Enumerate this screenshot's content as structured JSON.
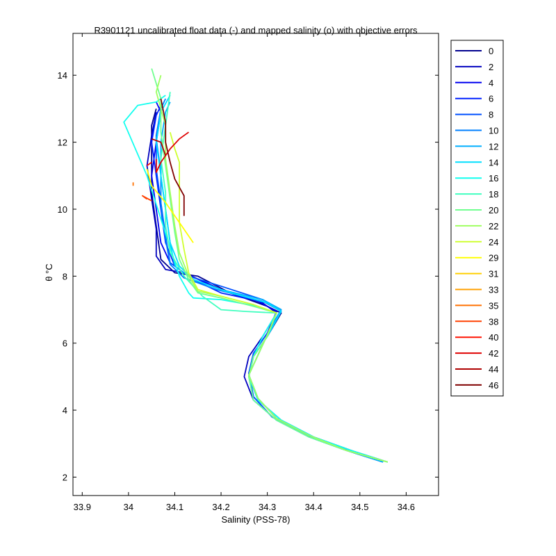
{
  "chart_data": {
    "type": "line",
    "title": "R3901121 uncalibrated float data (-) and mapped salinity (o) with objective errors",
    "xlabel": "Salinity (PSS-78)",
    "ylabel": "θ °C",
    "xlim": [
      33.88,
      34.67
    ],
    "ylim": [
      1.45,
      15.25
    ],
    "x_ticks": [
      33.9,
      34,
      34.1,
      34.2,
      34.3,
      34.4,
      34.5,
      34.6
    ],
    "x_tick_labels": [
      "33.9",
      "34",
      "34.1",
      "34.2",
      "34.3",
      "34.4",
      "34.5",
      "34.6"
    ],
    "y_ticks": [
      2,
      4,
      6,
      8,
      10,
      12,
      14
    ],
    "y_tick_labels": [
      "2",
      "4",
      "6",
      "8",
      "10",
      "12",
      "14"
    ],
    "grid": false,
    "legend_position": "outside-right-top",
    "series": [
      {
        "name": "0",
        "color": "#00008f",
        "values": [
          [
            34.56,
            2.45
          ],
          [
            34.48,
            2.8
          ],
          [
            34.4,
            3.2
          ],
          [
            34.33,
            3.7
          ],
          [
            34.28,
            4.3
          ],
          [
            34.26,
            5.0
          ],
          [
            34.27,
            5.6
          ],
          [
            34.3,
            6.2
          ],
          [
            34.33,
            6.9
          ],
          [
            34.3,
            7.1
          ],
          [
            34.22,
            7.5
          ],
          [
            34.15,
            8.0
          ],
          [
            34.1,
            8.1
          ],
          [
            34.07,
            8.5
          ],
          [
            34.06,
            9.5
          ],
          [
            34.05,
            10.5
          ],
          [
            34.05,
            11.5
          ],
          [
            34.05,
            12.5
          ],
          [
            34.06,
            13.0
          ]
        ]
      },
      {
        "name": "2",
        "color": "#0000bf",
        "values": [
          [
            34.55,
            2.45
          ],
          [
            34.47,
            2.8
          ],
          [
            34.39,
            3.2
          ],
          [
            34.32,
            3.7
          ],
          [
            34.27,
            4.3
          ],
          [
            34.25,
            5.0
          ],
          [
            34.26,
            5.6
          ],
          [
            34.29,
            6.2
          ],
          [
            34.32,
            6.9
          ],
          [
            34.29,
            7.2
          ],
          [
            34.2,
            7.6
          ],
          [
            34.12,
            8.1
          ],
          [
            34.08,
            8.2
          ],
          [
            34.06,
            8.6
          ],
          [
            34.06,
            9.4
          ],
          [
            34.05,
            10.3
          ],
          [
            34.04,
            11.3
          ],
          [
            34.05,
            12.2
          ],
          [
            34.06,
            12.9
          ]
        ]
      },
      {
        "name": "4",
        "color": "#0000ef",
        "values": [
          [
            34.55,
            2.45
          ],
          [
            34.46,
            2.85
          ],
          [
            34.38,
            3.3
          ],
          [
            34.31,
            3.8
          ],
          [
            34.27,
            4.4
          ],
          [
            34.26,
            5.1
          ],
          [
            34.27,
            5.7
          ],
          [
            34.3,
            6.3
          ],
          [
            34.32,
            6.95
          ],
          [
            34.28,
            7.25
          ],
          [
            34.19,
            7.65
          ],
          [
            34.12,
            8.1
          ],
          [
            34.09,
            8.4
          ],
          [
            34.07,
            9.0
          ],
          [
            34.06,
            10.0
          ],
          [
            34.05,
            11.0
          ],
          [
            34.06,
            12.0
          ],
          [
            34.07,
            12.9
          ],
          [
            34.06,
            13.2
          ]
        ]
      },
      {
        "name": "6",
        "color": "#0020ff",
        "values": [
          [
            34.56,
            2.45
          ],
          [
            34.47,
            2.8
          ],
          [
            34.39,
            3.25
          ],
          [
            34.32,
            3.75
          ],
          [
            34.28,
            4.35
          ],
          [
            34.26,
            5.05
          ],
          [
            34.28,
            5.65
          ],
          [
            34.3,
            6.25
          ],
          [
            34.33,
            6.95
          ],
          [
            34.3,
            7.2
          ],
          [
            34.2,
            7.5
          ],
          [
            34.14,
            7.9
          ],
          [
            34.1,
            8.3
          ],
          [
            34.08,
            9.0
          ],
          [
            34.07,
            10.0
          ],
          [
            34.06,
            11.0
          ],
          [
            34.05,
            12.0
          ],
          [
            34.06,
            12.8
          ],
          [
            34.07,
            13.1
          ]
        ]
      },
      {
        "name": "8",
        "color": "#0050ff",
        "values": [
          [
            34.55,
            2.45
          ],
          [
            34.46,
            2.85
          ],
          [
            34.38,
            3.3
          ],
          [
            34.31,
            3.8
          ],
          [
            34.27,
            4.4
          ],
          [
            34.26,
            5.1
          ],
          [
            34.27,
            5.7
          ],
          [
            34.3,
            6.3
          ],
          [
            34.33,
            7.0
          ],
          [
            34.29,
            7.3
          ],
          [
            34.2,
            7.7
          ],
          [
            34.13,
            8.0
          ],
          [
            34.09,
            8.4
          ],
          [
            34.08,
            9.2
          ],
          [
            34.07,
            10.2
          ],
          [
            34.06,
            11.2
          ],
          [
            34.06,
            12.2
          ],
          [
            34.07,
            13.0
          ]
        ]
      },
      {
        "name": "10",
        "color": "#0080ff",
        "values": [
          [
            34.56,
            2.45
          ],
          [
            34.47,
            2.8
          ],
          [
            34.39,
            3.2
          ],
          [
            34.32,
            3.7
          ],
          [
            34.27,
            4.3
          ],
          [
            34.26,
            5.0
          ],
          [
            34.27,
            5.6
          ],
          [
            34.3,
            6.2
          ],
          [
            34.33,
            6.95
          ],
          [
            34.29,
            7.25
          ],
          [
            34.19,
            7.6
          ],
          [
            34.12,
            7.95
          ],
          [
            34.09,
            8.35
          ],
          [
            34.08,
            9.1
          ],
          [
            34.07,
            10.1
          ],
          [
            34.07,
            11.1
          ],
          [
            34.06,
            12.1
          ],
          [
            34.07,
            13.0
          ],
          [
            34.08,
            13.3
          ]
        ]
      },
      {
        "name": "12",
        "color": "#00afff",
        "values": [
          [
            34.55,
            2.45
          ],
          [
            34.47,
            2.8
          ],
          [
            34.39,
            3.25
          ],
          [
            34.32,
            3.75
          ],
          [
            34.28,
            4.35
          ],
          [
            34.26,
            5.05
          ],
          [
            34.28,
            5.65
          ],
          [
            34.3,
            6.25
          ],
          [
            34.33,
            7.0
          ],
          [
            34.29,
            7.3
          ],
          [
            34.2,
            7.6
          ],
          [
            34.14,
            7.9
          ],
          [
            34.1,
            8.3
          ],
          [
            34.09,
            9.0
          ],
          [
            34.08,
            10.0
          ],
          [
            34.07,
            11.0
          ],
          [
            34.07,
            12.0
          ],
          [
            34.08,
            12.9
          ],
          [
            34.09,
            13.2
          ]
        ]
      },
      {
        "name": "14",
        "color": "#00dfff",
        "values": [
          [
            34.56,
            2.45
          ],
          [
            34.47,
            2.8
          ],
          [
            34.39,
            3.2
          ],
          [
            34.32,
            3.7
          ],
          [
            34.27,
            4.3
          ],
          [
            34.26,
            5.0
          ],
          [
            34.27,
            5.6
          ],
          [
            34.3,
            6.2
          ],
          [
            34.33,
            6.95
          ],
          [
            34.3,
            7.2
          ],
          [
            34.21,
            7.55
          ],
          [
            34.14,
            7.9
          ],
          [
            34.11,
            8.3
          ],
          [
            34.09,
            9.0
          ],
          [
            34.08,
            10.0
          ],
          [
            34.07,
            11.0
          ],
          [
            34.06,
            12.0
          ],
          [
            34.07,
            12.9
          ],
          [
            34.09,
            13.4
          ]
        ]
      },
      {
        "name": "16",
        "color": "#10ffef",
        "values": [
          [
            34.56,
            2.45
          ],
          [
            34.48,
            2.8
          ],
          [
            34.4,
            3.2
          ],
          [
            34.33,
            3.7
          ],
          [
            34.28,
            4.3
          ],
          [
            34.26,
            5.0
          ],
          [
            34.27,
            5.6
          ],
          [
            34.29,
            6.2
          ],
          [
            34.32,
            6.9
          ],
          [
            34.28,
            7.1
          ],
          [
            34.2,
            7.3
          ],
          [
            34.14,
            7.35
          ],
          [
            34.13,
            7.5
          ],
          [
            34.11,
            8.0
          ],
          [
            34.04,
            11.0
          ],
          [
            33.99,
            12.6
          ],
          [
            34.02,
            13.1
          ],
          [
            34.06,
            13.2
          ],
          [
            34.08,
            13.4
          ]
        ]
      },
      {
        "name": "18",
        "color": "#40ffbf",
        "values": [
          [
            34.56,
            2.45
          ],
          [
            34.47,
            2.8
          ],
          [
            34.39,
            3.25
          ],
          [
            34.32,
            3.75
          ],
          [
            34.28,
            4.35
          ],
          [
            34.26,
            5.05
          ],
          [
            34.28,
            5.65
          ],
          [
            34.3,
            6.25
          ],
          [
            34.32,
            6.9
          ],
          [
            34.25,
            6.95
          ],
          [
            34.2,
            7.0
          ],
          [
            34.16,
            7.4
          ],
          [
            34.12,
            8.0
          ],
          [
            34.09,
            8.7
          ],
          [
            34.08,
            9.5
          ],
          [
            34.08,
            10.5
          ],
          [
            34.07,
            11.5
          ],
          [
            34.08,
            12.5
          ],
          [
            34.09,
            13.5
          ]
        ]
      },
      {
        "name": "20",
        "color": "#70ff8f",
        "values": [
          [
            34.56,
            2.45
          ],
          [
            34.47,
            2.8
          ],
          [
            34.39,
            3.2
          ],
          [
            34.32,
            3.7
          ],
          [
            34.27,
            4.3
          ],
          [
            34.26,
            5.0
          ],
          [
            34.27,
            5.6
          ],
          [
            34.3,
            6.2
          ],
          [
            34.32,
            6.9
          ],
          [
            34.27,
            7.1
          ],
          [
            34.2,
            7.35
          ],
          [
            34.15,
            7.5
          ],
          [
            34.13,
            7.9
          ],
          [
            34.11,
            8.5
          ],
          [
            34.1,
            9.3
          ],
          [
            34.09,
            10.3
          ],
          [
            34.08,
            11.3
          ],
          [
            34.07,
            12.3
          ],
          [
            34.07,
            13.3
          ],
          [
            34.05,
            14.2
          ]
        ]
      },
      {
        "name": "22",
        "color": "#9fff60",
        "values": [
          [
            34.56,
            2.45
          ],
          [
            34.47,
            2.8
          ],
          [
            34.39,
            3.25
          ],
          [
            34.32,
            3.75
          ],
          [
            34.28,
            4.35
          ],
          [
            34.26,
            5.05
          ],
          [
            34.28,
            5.65
          ],
          [
            34.3,
            6.25
          ],
          [
            34.32,
            6.9
          ],
          [
            34.27,
            7.15
          ],
          [
            34.2,
            7.4
          ],
          [
            34.15,
            7.55
          ],
          [
            34.13,
            8.0
          ],
          [
            34.11,
            8.7
          ],
          [
            34.1,
            9.5
          ],
          [
            34.09,
            10.5
          ],
          [
            34.08,
            11.5
          ],
          [
            34.08,
            12.5
          ],
          [
            34.06,
            13.5
          ],
          [
            34.07,
            14.0
          ]
        ]
      },
      {
        "name": "24",
        "color": "#cfff30",
        "values": [
          [
            34.32,
            6.9
          ],
          [
            34.27,
            7.15
          ],
          [
            34.2,
            7.4
          ],
          [
            34.15,
            7.6
          ],
          [
            34.13,
            8.1
          ],
          [
            34.12,
            8.8
          ],
          [
            34.11,
            9.6
          ],
          [
            34.11,
            10.6
          ],
          [
            34.11,
            11.4
          ],
          [
            34.1,
            11.8
          ],
          [
            34.09,
            12.3
          ]
        ]
      },
      {
        "name": "29",
        "color": "#ffff00",
        "values": [
          [
            34.14,
            9.0
          ],
          [
            34.12,
            9.4
          ],
          [
            34.1,
            9.8
          ],
          [
            34.08,
            10.2
          ],
          [
            34.05,
            10.7
          ],
          [
            34.04,
            11.2
          ]
        ]
      },
      {
        "name": "31",
        "color": "#ffcf00",
        "values": []
      },
      {
        "name": "33",
        "color": "#ff9f00",
        "values": []
      },
      {
        "name": "35",
        "color": "#ff7000",
        "values": [
          [
            34.01,
            10.8
          ],
          [
            34.01,
            10.7
          ]
        ]
      },
      {
        "name": "38",
        "color": "#ff4000",
        "values": [
          [
            34.04,
            10.3
          ],
          [
            34.03,
            10.4
          ],
          [
            34.05,
            10.25
          ]
        ]
      },
      {
        "name": "40",
        "color": "#ff1000",
        "values": [
          [
            34.04,
            11.3
          ],
          [
            34.05,
            11.4
          ]
        ]
      },
      {
        "name": "42",
        "color": "#df0000",
        "values": [
          [
            34.13,
            12.3
          ],
          [
            34.11,
            12.1
          ],
          [
            34.09,
            11.8
          ],
          [
            34.07,
            11.4
          ],
          [
            34.06,
            11.1
          ],
          [
            34.06,
            11.5
          ]
        ]
      },
      {
        "name": "44",
        "color": "#af0000",
        "values": [
          [
            34.05,
            12.1
          ],
          [
            34.07,
            12.0
          ],
          [
            34.08,
            11.6
          ]
        ]
      },
      {
        "name": "46",
        "color": "#800000",
        "values": [
          [
            34.07,
            13.3
          ],
          [
            34.08,
            12.6
          ],
          [
            34.08,
            12.0
          ],
          [
            34.09,
            11.4
          ],
          [
            34.1,
            10.9
          ],
          [
            34.12,
            10.4
          ],
          [
            34.12,
            9.8
          ]
        ]
      }
    ]
  }
}
